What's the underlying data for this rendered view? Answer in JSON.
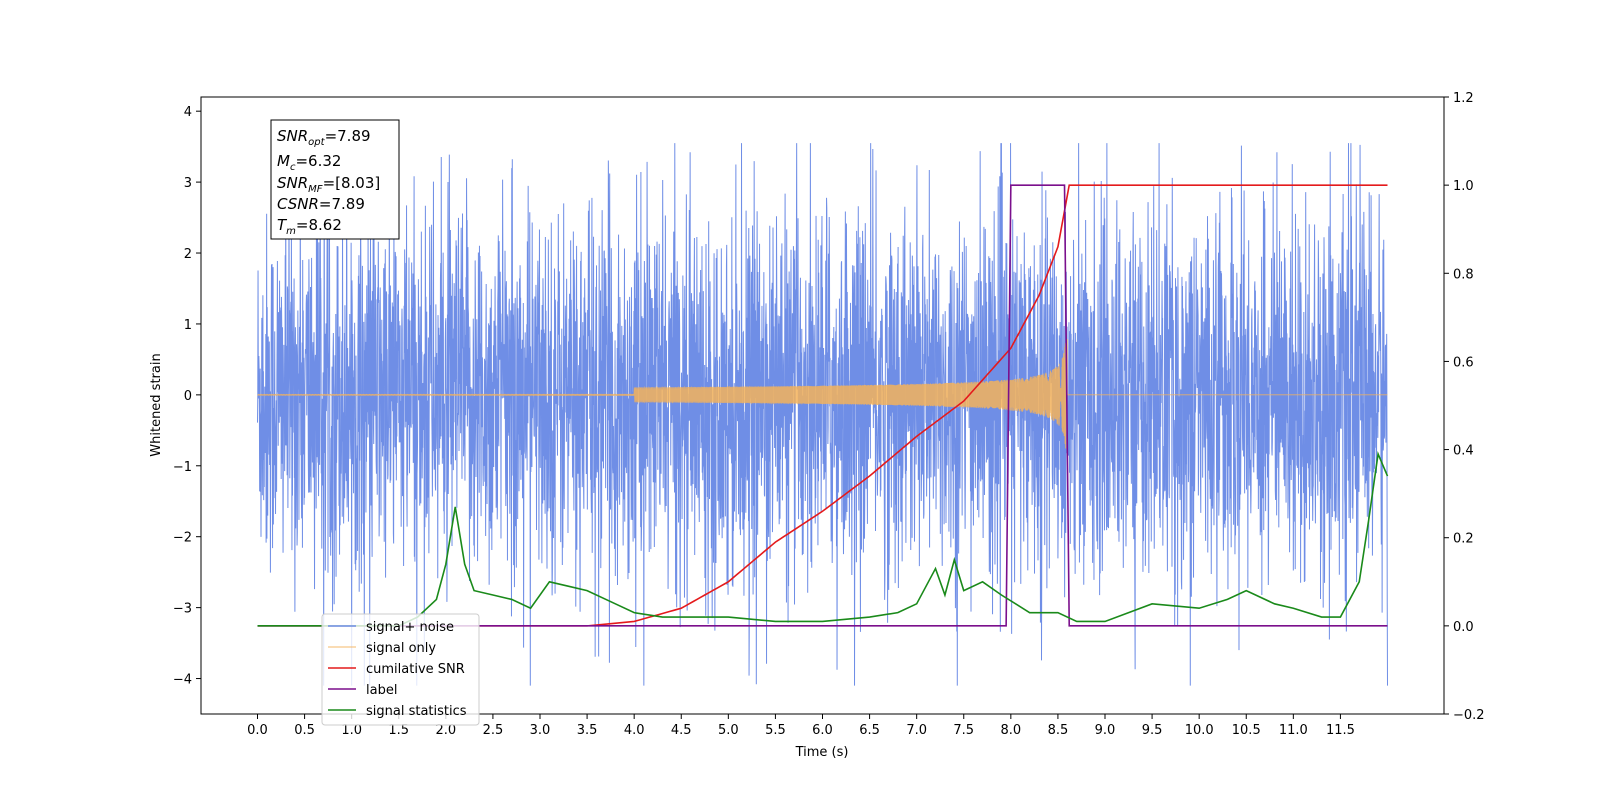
{
  "chart_data": {
    "type": "line",
    "xlabel": "Time (s)",
    "ylabel": "Whitened strain",
    "xlim": [
      -0.6,
      12.6
    ],
    "ylim": [
      -4.5,
      4.2
    ],
    "y2lim": [
      -0.2,
      1.2
    ],
    "x_ticks": [
      "0.0",
      "0.5",
      "1.0",
      "1.5",
      "2.0",
      "2.5",
      "3.0",
      "3.5",
      "4.0",
      "4.5",
      "5.0",
      "5.5",
      "6.0",
      "6.5",
      "7.0",
      "7.5",
      "8.0",
      "8.5",
      "9.0",
      "9.5",
      "10.0",
      "10.5",
      "11.0",
      "11.5"
    ],
    "y_ticks": [
      "4",
      "3",
      "2",
      "1",
      "0",
      "−1",
      "−2",
      "−3",
      "−4"
    ],
    "y2_ticks": [
      "1.2",
      "1.0",
      "0.8",
      "0.6",
      "0.4",
      "0.2",
      "0.0",
      "−0.2"
    ],
    "legend_position": "lower-left",
    "info_box": {
      "snr_opt": {
        "name": "SNR",
        "sub": "opt",
        "value": "=7.89"
      },
      "mc": {
        "name": "M",
        "sub": "c",
        "value": "=6.32"
      },
      "snr_mf": {
        "name": "SNR",
        "sub": "MF",
        "value": "=[8.03]"
      },
      "csnr": {
        "name": "CSNR",
        "value": "=7.89"
      },
      "tm": {
        "name": "T",
        "sub": "m",
        "value": "=8.62"
      }
    },
    "series": [
      {
        "name": "signal+ noise",
        "color": "#6f8ee6",
        "axis": "left",
        "description_values": {
          "x_range": [
            0,
            12
          ],
          "amplitude_approx": 3.0
        }
      },
      {
        "name": "signal only",
        "color": "#f5b35a",
        "axis": "left",
        "chirp": {
          "t_start": 4.0,
          "t_merge": 8.6,
          "peak_amplitude": 0.9
        }
      },
      {
        "name": "cumilative SNR",
        "color": "#e41a1c",
        "axis": "right",
        "x": [
          0,
          3.5,
          4.0,
          4.5,
          5.0,
          5.5,
          6.0,
          6.5,
          7.0,
          7.5,
          8.0,
          8.3,
          8.5,
          8.62,
          12.0
        ],
        "y": [
          0,
          0,
          0.01,
          0.04,
          0.1,
          0.19,
          0.26,
          0.34,
          0.43,
          0.51,
          0.63,
          0.75,
          0.86,
          1.0,
          1.0
        ]
      },
      {
        "name": "label",
        "color": "#7b0f8c",
        "axis": "right",
        "x": [
          0,
          7.95,
          8.0,
          8.57,
          8.62,
          12.0
        ],
        "y": [
          0,
          0,
          1,
          1,
          0,
          0
        ]
      },
      {
        "name": "signal statistics",
        "color": "#1a8a1a",
        "axis": "right",
        "x": [
          0,
          1.5,
          1.7,
          1.9,
          2.0,
          2.1,
          2.2,
          2.3,
          2.5,
          2.7,
          2.9,
          3.1,
          3.3,
          3.5,
          3.8,
          4.0,
          4.3,
          4.6,
          5.0,
          5.5,
          6.0,
          6.5,
          6.8,
          7.0,
          7.2,
          7.3,
          7.4,
          7.5,
          7.7,
          7.9,
          8.2,
          8.5,
          8.7,
          9.0,
          9.5,
          10.0,
          10.3,
          10.5,
          10.8,
          11.0,
          11.3,
          11.5,
          11.7,
          11.8,
          11.9,
          12.0
        ],
        "y": [
          0,
          0,
          0.02,
          0.06,
          0.14,
          0.27,
          0.14,
          0.08,
          0.07,
          0.06,
          0.04,
          0.1,
          0.09,
          0.08,
          0.05,
          0.03,
          0.02,
          0.02,
          0.02,
          0.01,
          0.01,
          0.02,
          0.03,
          0.05,
          0.13,
          0.07,
          0.15,
          0.08,
          0.1,
          0.07,
          0.03,
          0.03,
          0.01,
          0.01,
          0.05,
          0.04,
          0.06,
          0.08,
          0.05,
          0.04,
          0.02,
          0.02,
          0.1,
          0.24,
          0.39,
          0.34
        ]
      }
    ]
  }
}
